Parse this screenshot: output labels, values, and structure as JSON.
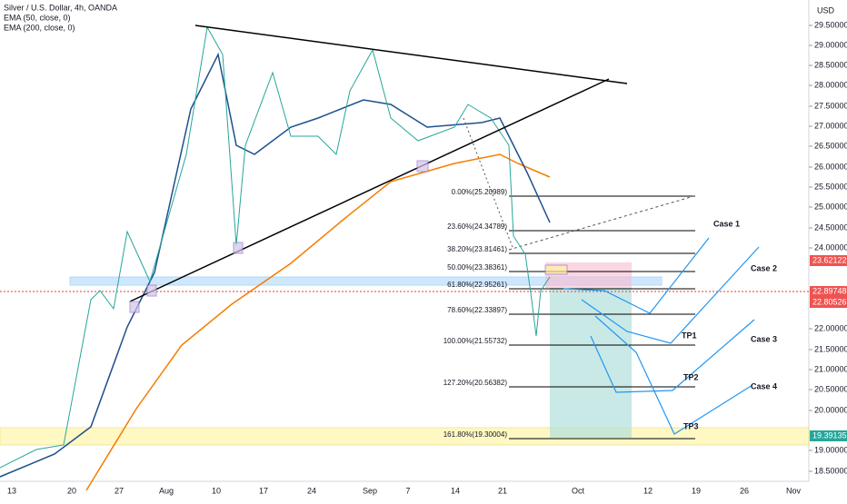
{
  "header": {
    "symbol": "Silver / U.S. Dollar, 4h, OANDA",
    "indicators": [
      "EMA (50, close, 0)",
      "EMA (200, close, 0)"
    ]
  },
  "price_axis": {
    "currency": "USD",
    "ticks": [
      "29.50000",
      "29.00000",
      "28.50000",
      "28.00000",
      "27.50000",
      "27.00000",
      "26.50000",
      "26.00000",
      "25.50000",
      "25.00000",
      "24.50000",
      "24.00000",
      "22.00000",
      "21.50000",
      "21.00000",
      "20.50000",
      "20.00000",
      "19.00000",
      "18.50000"
    ],
    "markers": [
      "23.62122",
      "22.89748",
      "22.80526",
      "19.39135"
    ]
  },
  "time_axis": {
    "labels": [
      "13",
      "20",
      "27",
      "Aug",
      "10",
      "17",
      "24",
      "Sep",
      "7",
      "14",
      "21",
      "Oct",
      "12",
      "19",
      "26",
      "Nov"
    ]
  },
  "fibonacci": {
    "levels": [
      "0.00%(25.20989)",
      "23.60%(24.34789)",
      "38.20%(23.81461)",
      "50.00%(23.38361)",
      "61.80%(22.95261)",
      "78.60%(22.33897)",
      "100.00%(21.55732)",
      "127.20%(20.56382)",
      "161.80%(19.30004)"
    ]
  },
  "annotations": {
    "cases": [
      "Case 1",
      "Case 2",
      "Case 3",
      "Case 4"
    ],
    "targets": [
      "TP1",
      "TP2",
      "TP3"
    ]
  }
}
